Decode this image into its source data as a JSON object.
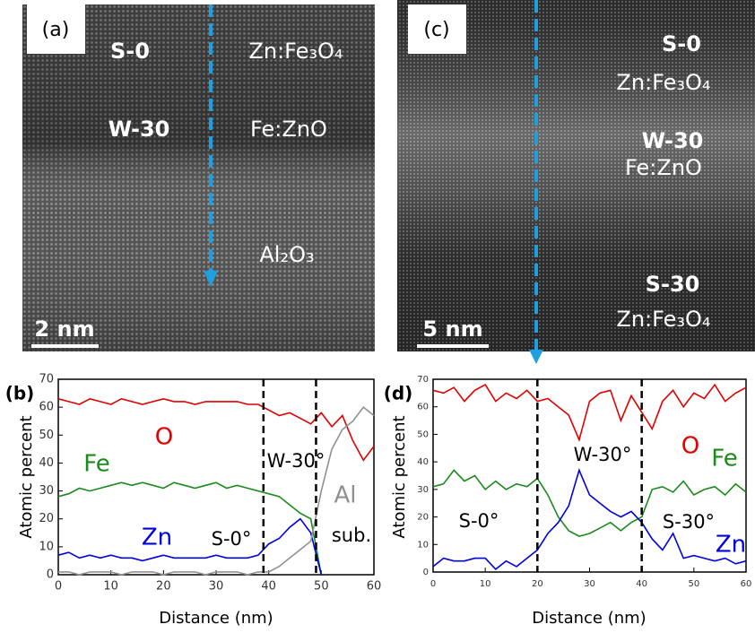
{
  "images": [
    {
      "label": "(a)",
      "scale_bar": "2 nm",
      "texts": [
        "S-0",
        "Zn:Fe₃O₄",
        "W-30",
        "Fe:ZnO",
        "Al₂O₃"
      ]
    },
    {
      "label": "(c)",
      "scale_bar": "5 nm",
      "texts": [
        "S-0",
        "Zn:Fe₃O₄",
        "W-30",
        "Fe:ZnO",
        "S-30",
        "Zn:Fe₃O₄"
      ]
    }
  ],
  "chart_data": [
    {
      "type": "line",
      "panel": "(b)",
      "xlabel": "Distance (nm)",
      "ylabel": "Atomic percent",
      "xlim": [
        0,
        60
      ],
      "ylim": [
        0,
        70
      ],
      "xticks": [
        0,
        10,
        20,
        30,
        40,
        50,
        60
      ],
      "yticks": [
        0,
        10,
        20,
        30,
        40,
        50,
        60,
        70
      ],
      "x": [
        0,
        2,
        4,
        6,
        8,
        10,
        12,
        14,
        16,
        18,
        20,
        22,
        24,
        26,
        28,
        30,
        32,
        34,
        36,
        38,
        40,
        42,
        44,
        46,
        48,
        50,
        52,
        54,
        56,
        58,
        60
      ],
      "vlines": [
        39,
        49
      ],
      "series": [
        {
          "name": "O",
          "color": "#e00000",
          "values": [
            63,
            62,
            61,
            63,
            62,
            61,
            63,
            62,
            61,
            62,
            63,
            62,
            62,
            61,
            62,
            62,
            62,
            62,
            61,
            61,
            59,
            57,
            58,
            56,
            54,
            58,
            53,
            57,
            48,
            41,
            46
          ]
        },
        {
          "name": "Fe",
          "color": "#1a8a1a",
          "values": [
            28,
            29,
            31,
            30,
            31,
            32,
            33,
            32,
            33,
            32,
            31,
            33,
            32,
            31,
            32,
            33,
            31,
            32,
            31,
            30,
            29,
            28,
            25,
            22,
            20,
            0,
            null,
            null,
            null,
            null,
            null
          ]
        },
        {
          "name": "Zn",
          "color": "#0000e0",
          "values": [
            7,
            8,
            6,
            7,
            6,
            7,
            6,
            6,
            5,
            6,
            7,
            6,
            6,
            6,
            6,
            7,
            6,
            6,
            6,
            7,
            11,
            13,
            17,
            20,
            15,
            0,
            null,
            null,
            null,
            null,
            null
          ]
        },
        {
          "name": "Al",
          "color": "#909090",
          "values": [
            1,
            1,
            0,
            1,
            1,
            1,
            0,
            1,
            1,
            1,
            0,
            1,
            1,
            1,
            0,
            1,
            1,
            1,
            0,
            1,
            1,
            3,
            6,
            9,
            12,
            30,
            45,
            52,
            55,
            60,
            57
          ]
        }
      ],
      "annotations": [
        "S-0°",
        "W-30°",
        "sub."
      ]
    },
    {
      "type": "line",
      "panel": "(d)",
      "xlabel": "Distance (nm)",
      "ylabel": "Atomic percent",
      "xlim": [
        0,
        60
      ],
      "ylim": [
        0,
        70
      ],
      "xticks": [
        0,
        10,
        20,
        30,
        40,
        50,
        60
      ],
      "yticks": [
        0,
        10,
        20,
        30,
        40,
        50,
        60,
        70
      ],
      "x": [
        0,
        2,
        4,
        6,
        8,
        10,
        12,
        14,
        16,
        18,
        20,
        22,
        24,
        26,
        28,
        30,
        32,
        34,
        36,
        38,
        40,
        42,
        44,
        46,
        48,
        50,
        52,
        54,
        56,
        58,
        60
      ],
      "vlines": [
        20,
        40
      ],
      "series": [
        {
          "name": "O",
          "color": "#e00000",
          "values": [
            66,
            65,
            67,
            62,
            66,
            68,
            62,
            65,
            63,
            66,
            62,
            63,
            60,
            57,
            48,
            62,
            65,
            66,
            55,
            64,
            58,
            52,
            62,
            66,
            60,
            65,
            63,
            68,
            62,
            65,
            67
          ]
        },
        {
          "name": "Fe",
          "color": "#1a8a1a",
          "values": [
            31,
            32,
            37,
            33,
            35,
            30,
            33,
            30,
            32,
            31,
            34,
            28,
            20,
            15,
            13,
            14,
            16,
            18,
            15,
            18,
            20,
            30,
            31,
            29,
            33,
            28,
            30,
            31,
            28,
            32,
            29
          ]
        },
        {
          "name": "Zn",
          "color": "#0000e0",
          "values": [
            2,
            5,
            4,
            4,
            5,
            5,
            1,
            4,
            2,
            5,
            8,
            14,
            18,
            24,
            37,
            28,
            25,
            22,
            20,
            22,
            18,
            12,
            8,
            14,
            5,
            6,
            5,
            4,
            5,
            3,
            4
          ]
        }
      ],
      "annotations": [
        "S-0°",
        "W-30°",
        "S-30°"
      ]
    }
  ]
}
